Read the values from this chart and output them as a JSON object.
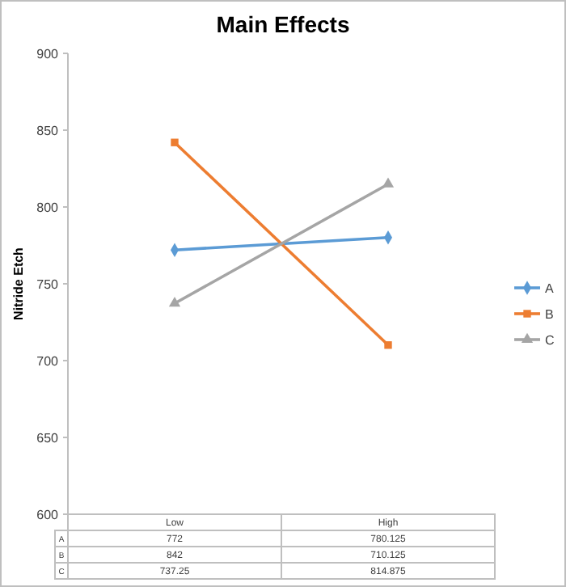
{
  "chart_data": {
    "type": "line",
    "title": "Main Effects",
    "ylabel": "Nitride Etch",
    "categories": [
      "Low",
      "High"
    ],
    "series": [
      {
        "name": "A",
        "color": "#5b9bd5",
        "marker": "diamond",
        "values": [
          772,
          780.125
        ]
      },
      {
        "name": "B",
        "color": "#ed7d31",
        "marker": "square",
        "values": [
          842,
          710.125
        ]
      },
      {
        "name": "C",
        "color": "#a5a5a5",
        "marker": "triangle",
        "values": [
          737.25,
          814.875
        ]
      }
    ],
    "ylim": [
      600,
      900
    ],
    "yticks": [
      600,
      650,
      700,
      750,
      800,
      850,
      900
    ],
    "grid": false,
    "legend": "right",
    "data_labels": true
  }
}
